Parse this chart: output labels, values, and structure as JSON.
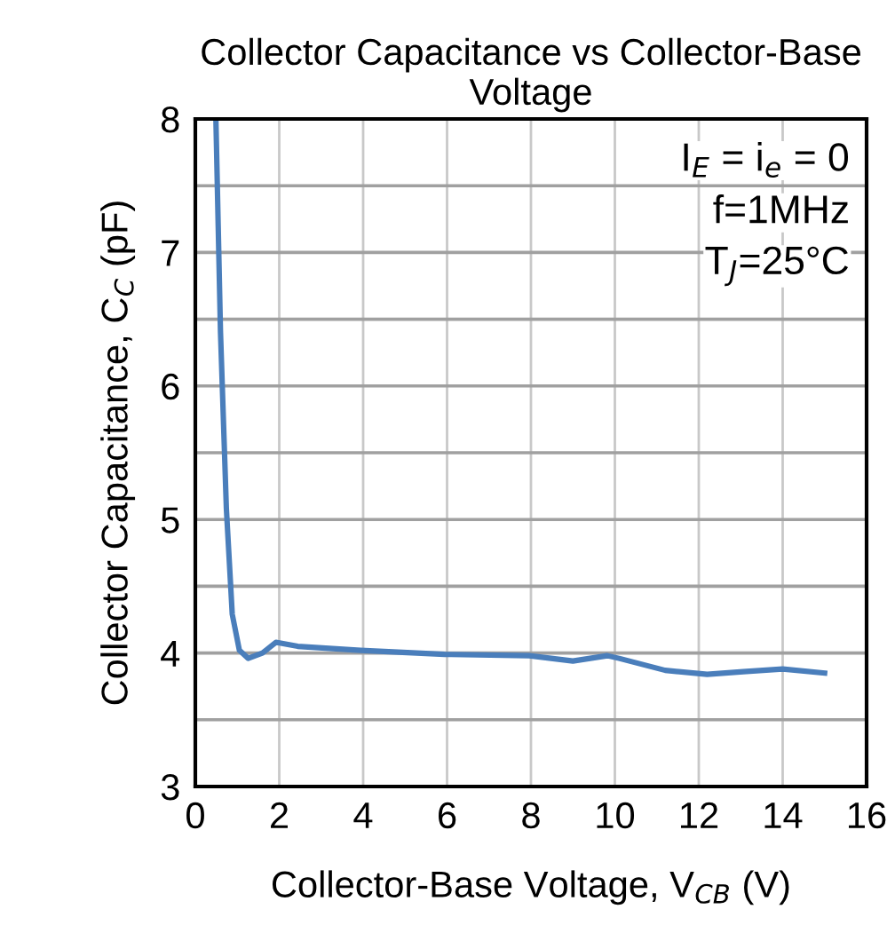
{
  "chart_data": {
    "type": "line",
    "title": "Collector Capacitance vs Collector-Base Voltage",
    "xlabel": "Collector-Base Voltage, V$_{CB}$ (V)",
    "ylabel": "Collector Capacitance, C$_{C}$ (pF)",
    "annotations": [
      "I$_{E}$ = i$_{e}$ = 0",
      "f=1MHz",
      "T$_{J}$=25°C"
    ],
    "x": [
      0.49,
      0.6,
      0.74,
      0.88,
      1.05,
      1.26,
      1.6,
      1.92,
      2.44,
      3.94,
      5.94,
      7.96,
      9.0,
      9.82,
      10.1,
      11.2,
      12.2,
      13.06,
      14.0,
      15.0
    ],
    "series": [
      {
        "color": "#4a7ebb",
        "values": [
          8,
          6.4,
          5.08,
          4.29,
          4.02,
          3.96,
          4.0,
          4.08,
          4.05,
          4.02,
          3.99,
          3.98,
          3.94,
          3.98,
          3.96,
          3.87,
          3.84,
          3.86,
          3.88,
          3.85
        ]
      }
    ],
    "xlim": [
      0,
      16
    ],
    "xticks": [
      0,
      2,
      4,
      6,
      8,
      10,
      12,
      14,
      16
    ],
    "ylim": [
      3,
      8
    ],
    "yticks": [
      3,
      {
        "value": 3.5,
        "label": null
      },
      4,
      {
        "value": 4.5,
        "label": null
      },
      5,
      {
        "value": 5.5,
        "label": null
      },
      6,
      {
        "value": 6.5,
        "label": null
      },
      7,
      {
        "value": 7.5,
        "label": null
      },
      8
    ],
    "grid": true,
    "marker": "none",
    "line_style": "solid"
  }
}
